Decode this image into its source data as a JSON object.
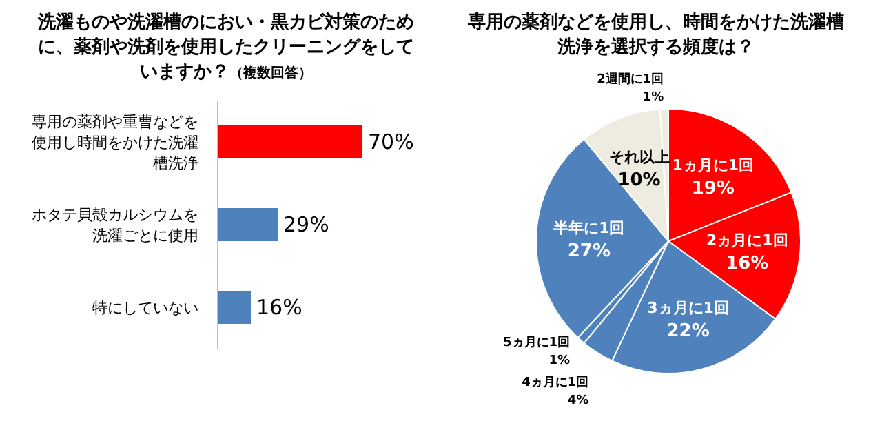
{
  "chart_data": [
    {
      "type": "bar",
      "orientation": "horizontal",
      "title": "洗濯ものや洗濯槽のにおい・黒カビ対策のために、薬剤や洗剤を使用したクリーニングをしていますか？",
      "subtitle": "（複数回答）",
      "categories": [
        "専用の薬剤や重曹などを使用し時間をかけた洗濯槽洗浄",
        "ホタテ貝殻カルシウムを洗濯ごとに使用",
        "特にしていない"
      ],
      "values": [
        70,
        29,
        16
      ],
      "colors": [
        "#ff0000",
        "#4f81bd",
        "#4f81bd"
      ],
      "tick_labels": "y",
      "value_labels": [
        "70%",
        "29%",
        "16%"
      ]
    },
    {
      "type": "pie",
      "title": "専用の薬剤などを使用し、時間をかけた洗濯槽洗浄を選択する頻度は？",
      "categories": [
        "1ヵ月に1回",
        "2ヵ月に1回",
        "3ヵ月に1回",
        "4ヵ月に1回",
        "5ヵ月に1回",
        "半年に1回",
        "それ以上",
        "2週間に1回"
      ],
      "values": [
        19,
        16,
        22,
        4,
        1,
        27,
        10,
        1
      ],
      "colors": [
        "#ff0000",
        "#ff0000",
        "#4f81bd",
        "#4f81bd",
        "#4f81bd",
        "#4f81bd",
        "#eeece1",
        "#eeece1"
      ],
      "value_labels": [
        "19%",
        "16%",
        "22%",
        "4%",
        "1%",
        "27%",
        "10%",
        "1%"
      ]
    }
  ]
}
